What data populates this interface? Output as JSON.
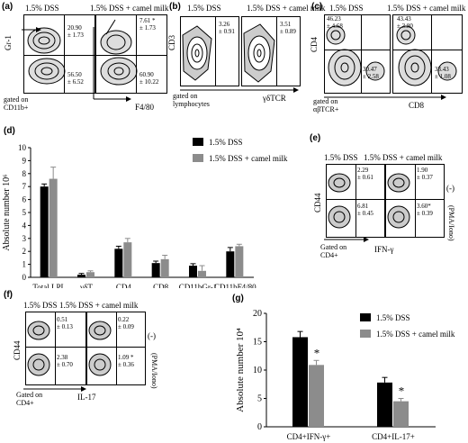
{
  "cond": {
    "dss": "1.5% DSS",
    "dss_camel": "1.5% DSS + camel milk"
  },
  "panel_a": {
    "label": "(a)",
    "ylabel": "Gr-1",
    "xlabel": "F4/80",
    "gate": "gated on CD11b+",
    "n1": "20.90",
    "n1s": "± 1.73",
    "n2": "56.50",
    "n2s": "± 6.52",
    "n3": "7.61 *",
    "n3s": "± 1.73",
    "n4": "60.90",
    "n4s": "± 10.22"
  },
  "panel_b": {
    "label": "(b)",
    "ylabel": "CD3",
    "xlabel": "γδTCR",
    "gate": "gated on lymphocytes",
    "n1": "3.26",
    "n1s": "± 0.91",
    "n2": "3.51",
    "n2s": "± 0.89"
  },
  "panel_c": {
    "label": "(c)",
    "ylabel": "CD4",
    "xlabel": "CD8",
    "gate": "gated on αβTCR+",
    "n1": "46.23",
    "n1s": "± 4.68",
    "n2": "30.47",
    "n2s": "± 2.58",
    "n3": "43.43",
    "n3s": "± 3.80",
    "n4": "33.43",
    "n4s": "± 1.08"
  },
  "panel_d": {
    "label": "(d)"
  },
  "panel_e": {
    "label": "(e)",
    "ylabel": "CD44",
    "xlabel": "IFN-γ",
    "gate": "Gated on CD4+",
    "minus": "(-)",
    "pma": "(PMA/Iono)",
    "n1": "2.29",
    "n1s": "± 0.61",
    "n2": "1.90",
    "n2s": "± 0.37",
    "n3": "6.81",
    "n3s": "± 0.45",
    "n4": "3.60*",
    "n4s": "± 0.39"
  },
  "panel_f": {
    "label": "(f)",
    "ylabel": "CD44",
    "xlabel": "IL-17",
    "gate": "Gated on CD4+",
    "minus": "(-)",
    "pma": "(PMA/Iono)",
    "n1": "0.51",
    "n1s": "± 0.13",
    "n2": "0.22",
    "n2s": "± 0.09",
    "n3": "2.38",
    "n3s": "± 0.70",
    "n4": "1.09 *",
    "n4s": "± 0.36"
  },
  "panel_g": {
    "label": "(g)"
  },
  "colors": {
    "dss": "#000000",
    "camel": "#8c8c8c"
  },
  "chart_data": [
    {
      "type": "bar",
      "ylabel": "Absolute number 10⁶",
      "categories": [
        "Total LPL",
        "γδT",
        "CD4",
        "CD8",
        "CD11bGr-1",
        "CD11bF4/80"
      ],
      "ylim": [
        0,
        10
      ],
      "yticks": [
        "0",
        "1",
        "2",
        "3",
        "4",
        "5",
        "6",
        "7",
        "8",
        "9",
        "10"
      ],
      "series": [
        {
          "name": "1.5% DSS",
          "values": [
            7.0,
            0.2,
            2.2,
            1.1,
            0.9,
            2.0
          ],
          "errors": [
            0.2,
            0.1,
            0.2,
            0.15,
            0.15,
            0.3
          ]
        },
        {
          "name": "1.5% DSS + camel milk",
          "values": [
            7.6,
            0.4,
            2.7,
            1.4,
            0.5,
            2.4
          ],
          "errors": [
            0.9,
            0.1,
            0.3,
            0.3,
            0.4,
            0.15
          ]
        }
      ],
      "legend": "top-right"
    },
    {
      "type": "bar",
      "ylabel": "Absolute number 10⁴",
      "categories": [
        "CD4+IFN-γ+",
        "CD4+IL-17+"
      ],
      "ylim": [
        0,
        20
      ],
      "yticks": [
        "0",
        "5",
        "10",
        "15",
        "20"
      ],
      "series": [
        {
          "name": "1.5% DSS",
          "values": [
            15.8,
            7.8
          ],
          "errors": [
            1.0,
            0.9
          ]
        },
        {
          "name": "1.5% DSS + camel milk",
          "values": [
            10.9,
            4.5
          ],
          "errors": [
            0.8,
            0.5
          ]
        }
      ],
      "annotations": [
        "*",
        "*"
      ],
      "legend": "top-right"
    }
  ]
}
